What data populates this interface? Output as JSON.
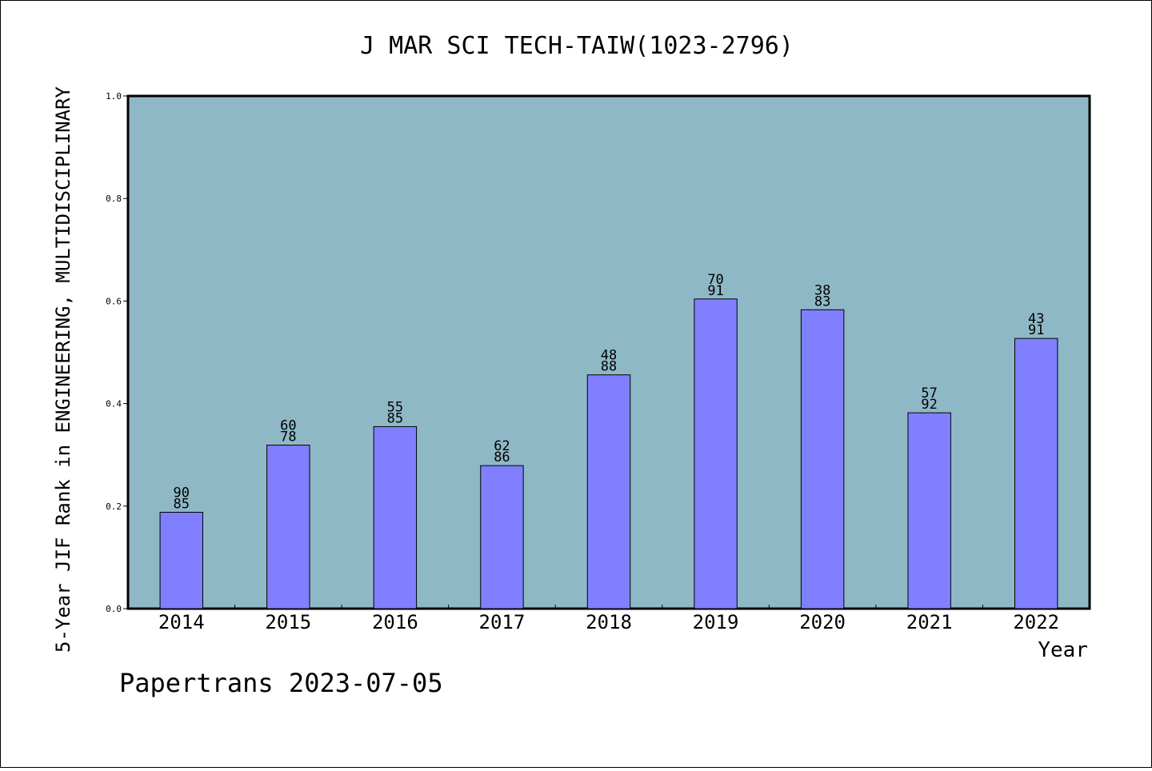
{
  "chart_data": {
    "type": "bar",
    "title": "J MAR SCI TECH-TAIW(1023-2796)",
    "xlabel": "Year",
    "ylabel": "5-Year JIF Rank in ENGINEERING, MULTIDISCIPLINARY",
    "ylim": [
      0,
      1.0
    ],
    "yticks": [
      "0.0",
      "0.2",
      "0.4",
      "0.6",
      "0.8",
      "1.0"
    ],
    "categories": [
      "2014",
      "2015",
      "2016",
      "2017",
      "2018",
      "2019",
      "2020",
      "2021",
      "2022"
    ],
    "values": [
      0.188,
      0.319,
      0.355,
      0.279,
      0.456,
      0.604,
      0.583,
      0.382,
      0.527
    ],
    "labels_top": [
      "90",
      "60",
      "55",
      "62",
      "48",
      "70",
      "38",
      "57",
      "43"
    ],
    "labels_bottom": [
      "85",
      "78",
      "85",
      "86",
      "88",
      "91",
      "83",
      "92",
      "91"
    ],
    "bar_color": "#8080ff",
    "plot_background": "#8fb8c6",
    "grid": false,
    "footer": "Papertrans 2023-07-05"
  }
}
